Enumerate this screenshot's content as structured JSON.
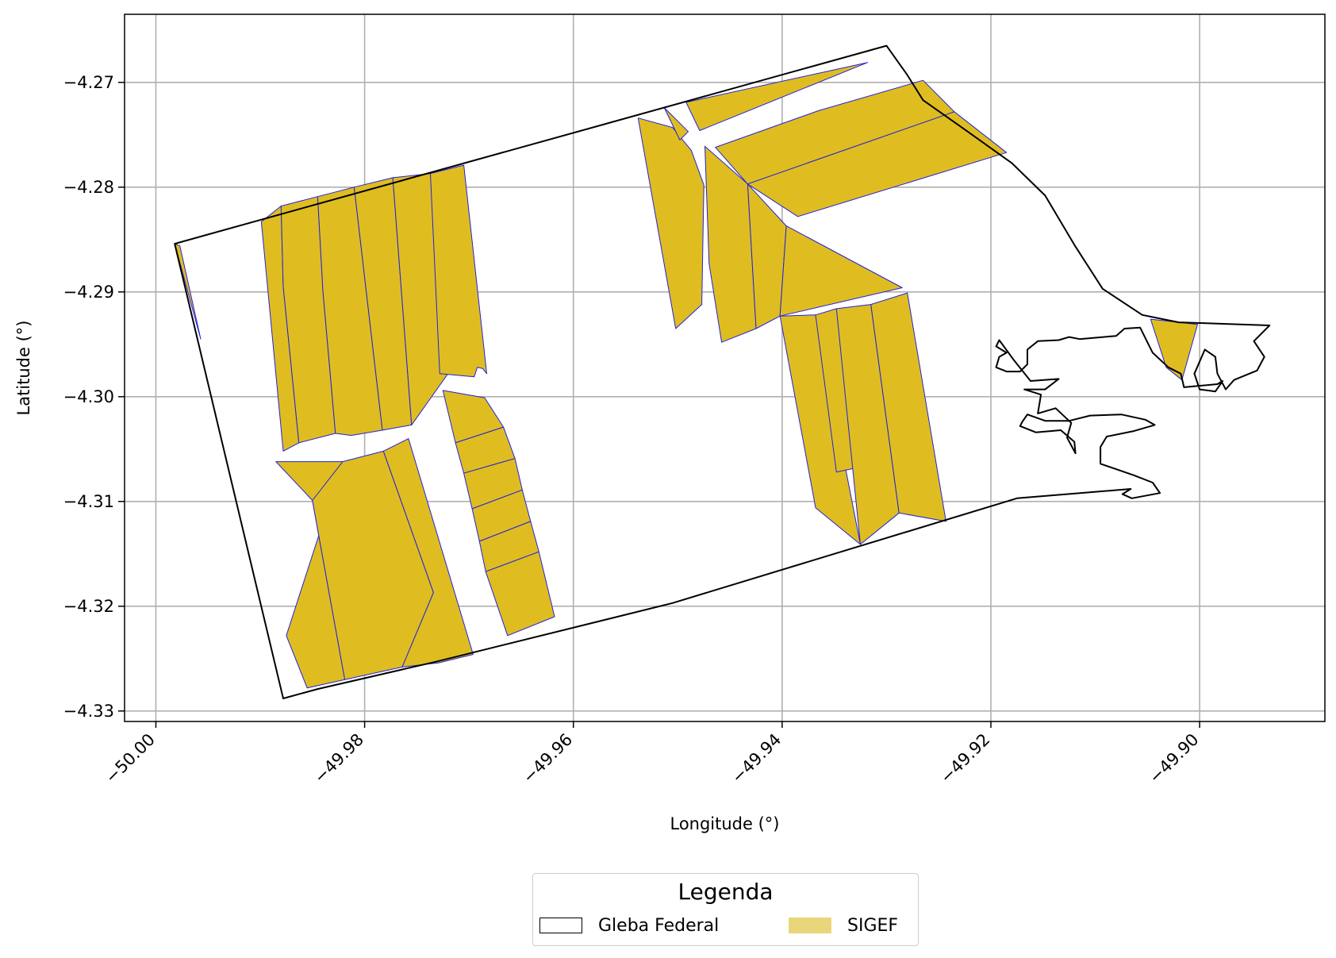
{
  "chart_data": {
    "type": "map",
    "xlabel": "Longitude (°)",
    "ylabel": "Latitude (°)",
    "xlim": [
      -50.003,
      -49.888
    ],
    "ylim": [
      -4.331,
      -4.2635
    ],
    "xticks": [
      -50.0,
      -49.98,
      -49.96,
      -49.94,
      -49.92,
      -49.9
    ],
    "xtick_labels": [
      "−50.00",
      "−49.98",
      "−49.96",
      "−49.94",
      "−49.92",
      "−49.90"
    ],
    "yticks": [
      -4.27,
      -4.28,
      -4.29,
      -4.3,
      -4.31,
      -4.32,
      -4.33
    ],
    "ytick_labels": [
      "−4.27",
      "−4.28",
      "−4.29",
      "−4.30",
      "−4.31",
      "−4.32",
      "−4.33"
    ],
    "grid": true,
    "legend": {
      "title": "Legenda",
      "placement": "bottom-center",
      "entries": [
        {
          "label": "Gleba Federal",
          "style": "outline",
          "color": "#000000"
        },
        {
          "label": "SIGEF",
          "style": "fill",
          "color": "#ead67a"
        }
      ]
    },
    "colors": {
      "sigef_fill": "#dfbd21",
      "sigef_edge": "#2222dd",
      "gleba_edge": "#000000"
    },
    "gleba": [
      [
        -49.9982,
        -4.2854
      ],
      [
        -49.93,
        -4.2665
      ],
      [
        -49.928,
        -4.2693
      ],
      [
        -49.9265,
        -4.2717
      ],
      [
        -49.9225,
        -4.2745
      ],
      [
        -49.918,
        -4.2777
      ],
      [
        -49.9148,
        -4.2808
      ],
      [
        -49.912,
        -4.2855
      ],
      [
        -49.9093,
        -4.2897
      ],
      [
        -49.9055,
        -4.2922
      ],
      [
        -49.902,
        -4.2929
      ],
      [
        -49.8933,
        -4.2932
      ],
      [
        -49.8948,
        -4.2947
      ],
      [
        -49.8938,
        -4.2962
      ],
      [
        -49.8945,
        -4.2975
      ],
      [
        -49.8967,
        -4.2984
      ],
      [
        -49.8975,
        -4.2993
      ],
      [
        -49.8983,
        -4.2978
      ],
      [
        -49.8985,
        -4.2962
      ],
      [
        -49.8995,
        -4.2955
      ],
      [
        -49.9005,
        -4.2978
      ],
      [
        -49.9,
        -4.2993
      ],
      [
        -49.8985,
        -4.2995
      ],
      [
        -49.8978,
        -4.2985
      ],
      [
        -49.8983,
        -4.2988
      ],
      [
        -49.9015,
        -4.2991
      ],
      [
        -49.9018,
        -4.2978
      ],
      [
        -49.903,
        -4.2972
      ],
      [
        -49.9045,
        -4.2958
      ],
      [
        -49.9057,
        -4.2934
      ],
      [
        -49.9072,
        -4.2935
      ],
      [
        -49.908,
        -4.2942
      ],
      [
        -49.9115,
        -4.2945
      ],
      [
        -49.9125,
        -4.2943
      ],
      [
        -49.9135,
        -4.2946
      ],
      [
        -49.9155,
        -4.2947
      ],
      [
        -49.9165,
        -4.2955
      ],
      [
        -49.9165,
        -4.2969
      ],
      [
        -49.9172,
        -4.2976
      ],
      [
        -49.9185,
        -4.2976
      ],
      [
        -49.9195,
        -4.2972
      ],
      [
        -49.9192,
        -4.2962
      ],
      [
        -49.9185,
        -4.2958
      ],
      [
        -49.9195,
        -4.2952
      ],
      [
        -49.9192,
        -4.2946
      ],
      [
        -49.9178,
        -4.2965
      ],
      [
        -49.9162,
        -4.2985
      ],
      [
        -49.9135,
        -4.2983
      ],
      [
        -49.9148,
        -4.2993
      ],
      [
        -49.9168,
        -4.2993
      ],
      [
        -49.9152,
        -4.2998
      ],
      [
        -49.9155,
        -4.3016
      ],
      [
        -49.9138,
        -4.3011
      ],
      [
        -49.9123,
        -4.3025
      ],
      [
        -49.9127,
        -4.3039
      ],
      [
        -49.9119,
        -4.3054
      ],
      [
        -49.912,
        -4.3043
      ],
      [
        -49.9133,
        -4.3032
      ],
      [
        -49.9157,
        -4.3034
      ],
      [
        -49.9172,
        -4.3028
      ],
      [
        -49.917,
        -4.3024
      ],
      [
        -49.9165,
        -4.3017
      ],
      [
        -49.9148,
        -4.3023
      ],
      [
        -49.9125,
        -4.3023
      ],
      [
        -49.9105,
        -4.3018
      ],
      [
        -49.9075,
        -4.3017
      ],
      [
        -49.9052,
        -4.3022
      ],
      [
        -49.9043,
        -4.3027
      ],
      [
        -49.9064,
        -4.3033
      ],
      [
        -49.9089,
        -4.3038
      ],
      [
        -49.9095,
        -4.3048
      ],
      [
        -49.9095,
        -4.3057
      ],
      [
        -49.9095,
        -4.3064
      ],
      [
        -49.9063,
        -4.3075
      ],
      [
        -49.9045,
        -4.3082
      ],
      [
        -49.9038,
        -4.3092
      ],
      [
        -49.9065,
        -4.3097
      ],
      [
        -49.9074,
        -4.3093
      ],
      [
        -49.9066,
        -4.3088
      ],
      [
        -49.9175,
        -4.3097
      ],
      [
        -49.9505,
        -4.3197
      ],
      [
        -49.9732,
        -4.3253
      ],
      [
        -49.9845,
        -4.3279
      ],
      [
        -49.9878,
        -4.3288
      ],
      [
        -49.9982,
        -4.2854
      ]
    ],
    "sigef_parcels": [
      [
        [
          -49.9982,
          -4.2854
        ],
        [
          -49.9977,
          -4.2856
        ],
        [
          -49.9957,
          -4.2945
        ],
        [
          -49.9982,
          -4.2854
        ]
      ],
      [
        [
          -49.9899,
          -4.2833
        ],
        [
          -49.988,
          -4.2818
        ],
        [
          -49.9878,
          -4.2895
        ],
        [
          -49.9863,
          -4.3044
        ],
        [
          -49.9878,
          -4.3052
        ],
        [
          -49.9899,
          -4.2833
        ]
      ],
      [
        [
          -49.988,
          -4.2818
        ],
        [
          -49.9845,
          -4.2809
        ],
        [
          -49.984,
          -4.2899
        ],
        [
          -49.9828,
          -4.3035
        ],
        [
          -49.9863,
          -4.3044
        ],
        [
          -49.9878,
          -4.2895
        ],
        [
          -49.988,
          -4.2818
        ]
      ],
      [
        [
          -49.9845,
          -4.2809
        ],
        [
          -49.981,
          -4.28
        ],
        [
          -49.9783,
          -4.3032
        ],
        [
          -49.9813,
          -4.3037
        ],
        [
          -49.9828,
          -4.3035
        ],
        [
          -49.984,
          -4.2899
        ],
        [
          -49.9845,
          -4.2809
        ]
      ],
      [
        [
          -49.981,
          -4.28
        ],
        [
          -49.9773,
          -4.2791
        ],
        [
          -49.9755,
          -4.3027
        ],
        [
          -49.9783,
          -4.3032
        ],
        [
          -49.981,
          -4.28
        ]
      ],
      [
        [
          -49.9773,
          -4.2791
        ],
        [
          -49.9737,
          -4.2787
        ],
        [
          -49.9714,
          -4.2978
        ],
        [
          -49.9718,
          -4.2975
        ],
        [
          -49.9755,
          -4.3027
        ],
        [
          -49.9773,
          -4.2791
        ]
      ],
      [
        [
          -49.9737,
          -4.2787
        ],
        [
          -49.9705,
          -4.2779
        ],
        [
          -49.9683,
          -4.2978
        ],
        [
          -49.9687,
          -4.2973
        ],
        [
          -49.9692,
          -4.2972
        ],
        [
          -49.9695,
          -4.2981
        ],
        [
          -49.9728,
          -4.2978
        ],
        [
          -49.9737,
          -4.2787
        ]
      ],
      [
        [
          -49.9885,
          -4.3062
        ],
        [
          -49.9821,
          -4.3062
        ],
        [
          -49.9875,
          -4.3228
        ],
        [
          -49.9855,
          -4.3278
        ],
        [
          -49.9819,
          -4.327
        ],
        [
          -49.985,
          -4.3099
        ],
        [
          -49.9885,
          -4.3062
        ]
      ],
      [
        [
          -49.9821,
          -4.3062
        ],
        [
          -49.9782,
          -4.3052
        ],
        [
          -49.9734,
          -4.3187
        ],
        [
          -49.9764,
          -4.3258
        ],
        [
          -49.9819,
          -4.327
        ],
        [
          -49.985,
          -4.3099
        ],
        [
          -49.9821,
          -4.3062
        ]
      ],
      [
        [
          -49.9782,
          -4.3052
        ],
        [
          -49.9758,
          -4.304
        ],
        [
          -49.9696,
          -4.3246
        ],
        [
          -49.9729,
          -4.3254
        ],
        [
          -49.9764,
          -4.3258
        ],
        [
          -49.9734,
          -4.3187
        ],
        [
          -49.9782,
          -4.3052
        ]
      ],
      [
        [
          -49.9725,
          -4.2994
        ],
        [
          -49.9685,
          -4.3001
        ],
        [
          -49.9667,
          -4.3029
        ],
        [
          -49.9713,
          -4.3044
        ],
        [
          -49.9725,
          -4.2994
        ]
      ],
      [
        [
          -49.9713,
          -4.3044
        ],
        [
          -49.9667,
          -4.3029
        ],
        [
          -49.9656,
          -4.3059
        ],
        [
          -49.9705,
          -4.3073
        ],
        [
          -49.9713,
          -4.3044
        ]
      ],
      [
        [
          -49.9705,
          -4.3073
        ],
        [
          -49.9656,
          -4.3059
        ],
        [
          -49.9649,
          -4.3089
        ],
        [
          -49.9697,
          -4.3107
        ],
        [
          -49.9705,
          -4.3073
        ]
      ],
      [
        [
          -49.9697,
          -4.3107
        ],
        [
          -49.9649,
          -4.3089
        ],
        [
          -49.9641,
          -4.3119
        ],
        [
          -49.969,
          -4.3138
        ],
        [
          -49.9697,
          -4.3107
        ]
      ],
      [
        [
          -49.969,
          -4.3138
        ],
        [
          -49.9641,
          -4.3119
        ],
        [
          -49.9633,
          -4.3148
        ],
        [
          -49.9684,
          -4.3167
        ],
        [
          -49.969,
          -4.3138
        ]
      ],
      [
        [
          -49.9684,
          -4.3167
        ],
        [
          -49.9633,
          -4.3148
        ],
        [
          -49.9618,
          -4.321
        ],
        [
          -49.9663,
          -4.3228
        ],
        [
          -49.9684,
          -4.3167
        ]
      ],
      [
        [
          -49.9538,
          -4.2734
        ],
        [
          -49.9505,
          -4.2743
        ],
        [
          -49.9487,
          -4.2765
        ],
        [
          -49.9475,
          -4.2798
        ],
        [
          -49.9477,
          -4.2912
        ],
        [
          -49.9502,
          -4.2935
        ],
        [
          -49.9538,
          -4.2734
        ]
      ],
      [
        [
          -49.9513,
          -4.2724
        ],
        [
          -49.949,
          -4.2747
        ],
        [
          -49.9498,
          -4.2755
        ],
        [
          -49.9513,
          -4.2724
        ]
      ],
      [
        [
          -49.9492,
          -4.2719
        ],
        [
          -49.9318,
          -4.2681
        ],
        [
          -49.9479,
          -4.2746
        ],
        [
          -49.9492,
          -4.2719
        ]
      ],
      [
        [
          -49.9474,
          -4.2761
        ],
        [
          -49.9433,
          -4.2797
        ],
        [
          -49.9425,
          -4.2935
        ],
        [
          -49.9458,
          -4.2948
        ],
        [
          -49.947,
          -4.2873
        ],
        [
          -49.9474,
          -4.2761
        ]
      ],
      [
        [
          -49.9433,
          -4.2797
        ],
        [
          -49.9396,
          -4.2837
        ],
        [
          -49.9402,
          -4.2923
        ],
        [
          -49.9425,
          -4.2935
        ],
        [
          -49.9433,
          -4.2797
        ]
      ],
      [
        [
          -49.9396,
          -4.2837
        ],
        [
          -49.9285,
          -4.2896
        ],
        [
          -49.9402,
          -4.2923
        ],
        [
          -49.9396,
          -4.2837
        ]
      ],
      [
        [
          -49.9464,
          -4.2762
        ],
        [
          -49.9365,
          -4.2727
        ],
        [
          -49.9265,
          -4.2698
        ],
        [
          -49.9235,
          -4.2728
        ],
        [
          -49.9433,
          -4.2797
        ],
        [
          -49.9464,
          -4.2762
        ]
      ],
      [
        [
          -49.9433,
          -4.2797
        ],
        [
          -49.9235,
          -4.2728
        ],
        [
          -49.9185,
          -4.2767
        ],
        [
          -49.9385,
          -4.2828
        ],
        [
          -49.9433,
          -4.2797
        ]
      ],
      [
        [
          -49.9402,
          -4.2923
        ],
        [
          -49.9368,
          -4.2922
        ],
        [
          -49.9325,
          -4.3141
        ],
        [
          -49.9368,
          -4.3106
        ],
        [
          -49.9402,
          -4.2923
        ]
      ],
      [
        [
          -49.9368,
          -4.2922
        ],
        [
          -49.9348,
          -4.2916
        ],
        [
          -49.9315,
          -4.3065
        ],
        [
          -49.9348,
          -4.3072
        ],
        [
          -49.9368,
          -4.2922
        ]
      ],
      [
        [
          -49.9348,
          -4.2916
        ],
        [
          -49.9315,
          -4.2912
        ],
        [
          -49.9288,
          -4.3111
        ],
        [
          -49.9325,
          -4.3141
        ],
        [
          -49.9348,
          -4.2916
        ]
      ],
      [
        [
          -49.9315,
          -4.2912
        ],
        [
          -49.928,
          -4.2901
        ],
        [
          -49.9243,
          -4.3119
        ],
        [
          -49.9288,
          -4.3111
        ],
        [
          -49.9315,
          -4.2912
        ]
      ],
      [
        [
          -49.9047,
          -4.2926
        ],
        [
          -49.9002,
          -4.2931
        ],
        [
          -49.9017,
          -4.2984
        ],
        [
          -49.9032,
          -4.2972
        ],
        [
          -49.9047,
          -4.2926
        ]
      ]
    ]
  }
}
